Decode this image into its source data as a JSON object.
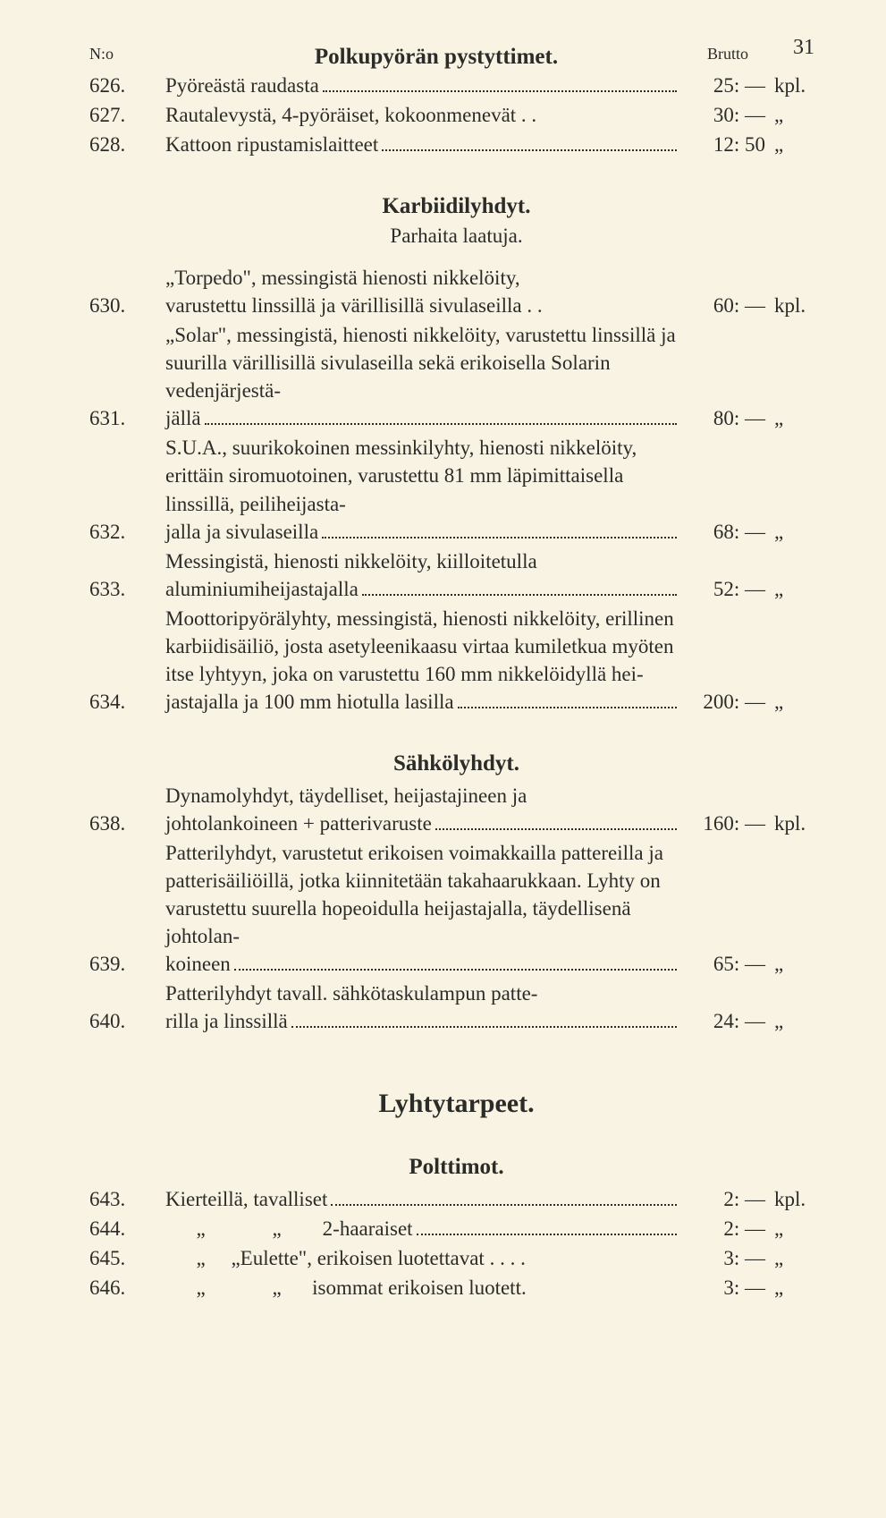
{
  "pageNumber": "31",
  "headerLeft": "N:o",
  "headerRight": "Brutto",
  "sections": [
    {
      "title": "Polkupyörän pystyttimet.",
      "items": [
        {
          "num": "626.",
          "pre": "",
          "last": "Pyöreästä raudasta",
          "price": "25: —",
          "unit": "kpl."
        },
        {
          "num": "627.",
          "pre": "",
          "last": "Rautalevystä, 4-pyöräiset, kokoonmenevät . .",
          "price": "30: —",
          "unit": "„",
          "noLeader": true
        },
        {
          "num": "628.",
          "pre": "",
          "last": "Kattoon ripustamislaitteet",
          "price": "12: 50",
          "unit": "„"
        }
      ]
    },
    {
      "title": "Karbiidilyhdyt.",
      "subtitle": "Parhaita laatuja.",
      "items": [
        {
          "num": "630.",
          "pre": "„Torpedo\", messingistä hienosti nikkelöity,",
          "last": "varustettu linssillä ja värillisillä sivulaseilla . .",
          "price": "60: —",
          "unit": "kpl.",
          "noLeader": true
        },
        {
          "num": "631.",
          "pre": "„Solar\", messingistä, hienosti nikkelöity, varustettu linssillä ja suurilla värillisillä sivulaseilla sekä erikoisella Solarin vedenjärjestä-",
          "last": "jällä",
          "price": "80: —",
          "unit": "„"
        },
        {
          "num": "632.",
          "pre": "S.U.A., suurikokoinen messinkilyhty, hienosti nikkelöity, erittäin siromuotoinen, varustettu 81 mm läpimittaisella linssillä, peiliheijasta-",
          "last": "jalla ja sivulaseilla",
          "price": "68: —",
          "unit": "„"
        },
        {
          "num": "633.",
          "pre": "Messingistä, hienosti nikkelöity, kiilloitetulla",
          "last": "aluminiumiheijastajalla",
          "price": "52: —",
          "unit": "„"
        },
        {
          "num": "634.",
          "pre": "Moottoripyörälyhty, messingistä, hienosti nikkelöity, erillinen karbiidisäiliö, josta asetyleenikaasu virtaa kumiletkua myöten itse lyhtyyn, joka on varustettu 160 mm nikkelöidyllä hei-",
          "last": "jastajalla ja 100 mm hiotulla lasilla",
          "price": "200: —",
          "unit": "„"
        }
      ]
    },
    {
      "title": "Sähkölyhdyt.",
      "items": [
        {
          "num": "638.",
          "pre": "Dynamolyhdyt, täydelliset, heijastajineen ja",
          "last": "johtolankoineen + patterivaruste",
          "price": "160: —",
          "unit": "kpl."
        },
        {
          "num": "639.",
          "pre": "Patterilyhdyt, varustetut erikoisen voimakkailla pattereilla ja patterisäiliöillä, jotka kiinnitetään takahaarukkaan. Lyhty on varustettu suurella hopeoidulla heijastajalla, täydellisenä johtolan-",
          "last": "koineen",
          "price": "65: —",
          "unit": "„"
        },
        {
          "num": "640.",
          "pre": "Patterilyhdyt tavall. sähkötaskulampun patte-",
          "last": "rilla ja linssillä",
          "price": "24: —",
          "unit": "„"
        }
      ]
    },
    {
      "titleLarge": "Lyhtytarpeet.",
      "title": "Polttimot.",
      "items": [
        {
          "num": "643.",
          "pre": "",
          "last": "Kierteillä, tavalliset",
          "price": "2: —",
          "unit": "kpl."
        },
        {
          "num": "644.",
          "pre": "",
          "last": "      „             „        2-haaraiset",
          "price": "2: —",
          "unit": "„",
          "indent": true
        },
        {
          "num": "645.",
          "pre": "",
          "last": "      „     „Eulette\", erikoisen luotettavat . . . .",
          "price": "3: —",
          "unit": "„",
          "indent": true,
          "noLeader": true
        },
        {
          "num": "646.",
          "pre": "",
          "last": "      „             „      isommat erikoisen luotett.",
          "price": "3: —",
          "unit": "„",
          "indent": true,
          "noLeader": true
        }
      ]
    }
  ]
}
